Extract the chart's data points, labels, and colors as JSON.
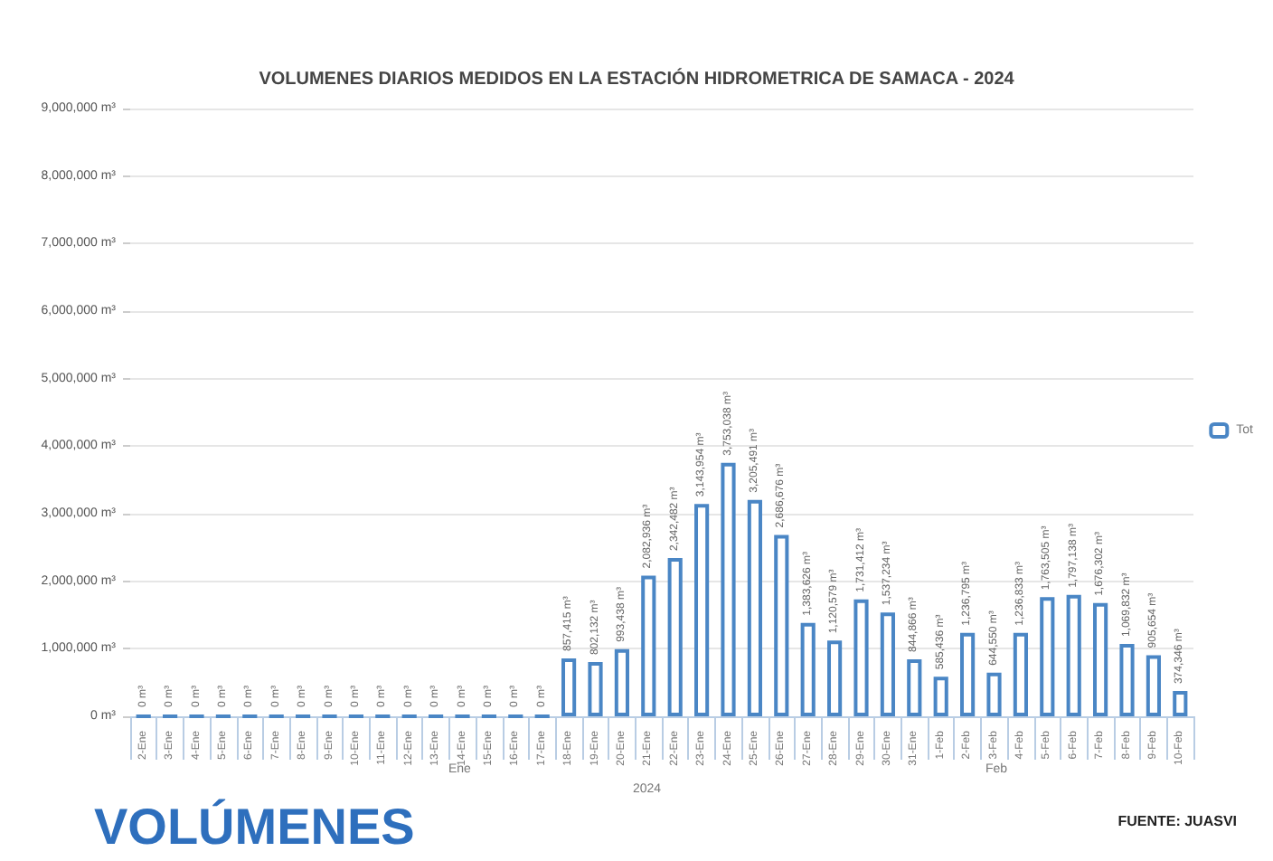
{
  "chart_data": {
    "type": "bar",
    "title": "VOLUMENES DIARIOS MEDIDOS EN LA ESTACIÓN HIDROMETRICA DE SAMACA - 2024",
    "categories": [
      "2-Ene",
      "3-Ene",
      "4-Ene",
      "5-Ene",
      "6-Ene",
      "7-Ene",
      "8-Ene",
      "9-Ene",
      "10-Ene",
      "11-Ene",
      "12-Ene",
      "13-Ene",
      "14-Ene",
      "15-Ene",
      "16-Ene",
      "17-Ene",
      "18-Ene",
      "19-Ene",
      "20-Ene",
      "21-Ene",
      "22-Ene",
      "23-Ene",
      "24-Ene",
      "25-Ene",
      "26-Ene",
      "27-Ene",
      "28-Ene",
      "29-Ene",
      "30-Ene",
      "31-Ene",
      "1-Feb",
      "2-Feb",
      "3-Feb",
      "4-Feb",
      "5-Feb",
      "6-Feb",
      "7-Feb",
      "8-Feb",
      "9-Feb",
      "10-Feb"
    ],
    "series": [
      {
        "name": "Tot",
        "color": "#4a86c5",
        "values": [
          0,
          0,
          0,
          0,
          0,
          0,
          0,
          0,
          0,
          0,
          0,
          0,
          0,
          0,
          0,
          0,
          857415,
          802132,
          993438,
          2082936,
          2342482,
          3143954,
          3753038,
          3205491,
          2686676,
          1383626,
          1120579,
          1731412,
          1537234,
          844866,
          585436,
          1236795,
          644550,
          1236833,
          1763505,
          1797138,
          1676302,
          1069832,
          905654,
          374346
        ],
        "value_labels": [
          "0 m³",
          "0 m³",
          "0 m³",
          "0 m³",
          "0 m³",
          "0 m³",
          "0 m³",
          "0 m³",
          "0 m³",
          "0 m³",
          "0 m³",
          "0 m³",
          "0 m³",
          "0 m³",
          "0 m³",
          "0 m³",
          "857,415 m³",
          "802,132 m³",
          "993,438 m³",
          "2,082,936 m³",
          "2,342,482 m³",
          "3,143,954 m³",
          "3,753,038 m³",
          "3,205,491 m³",
          "2,686,676 m³",
          "1,383,626 m³",
          "1,120,579 m³",
          "1,731,412 m³",
          "1,537,234 m³",
          "844,866 m³",
          "585,436 m³",
          "1,236,795 m³",
          "644,550 m³",
          "1,236,833 m³",
          "1,763,505 m³",
          "1,797,138 m³",
          "1,676,302 m³",
          "1,069,832 m³",
          "905,654 m³",
          "374,346 m³"
        ]
      }
    ],
    "ylim": [
      0,
      9000000
    ],
    "yticks": [
      {
        "value": 0,
        "label": "0 m³"
      },
      {
        "value": 1000000,
        "label": "1,000,000 m³"
      },
      {
        "value": 2000000,
        "label": "2,000,000 m³"
      },
      {
        "value": 3000000,
        "label": "3,000,000 m³"
      },
      {
        "value": 4000000,
        "label": "4,000,000 m³"
      },
      {
        "value": 5000000,
        "label": "5,000,000 m³"
      },
      {
        "value": 6000000,
        "label": "6,000,000 m³"
      },
      {
        "value": 7000000,
        "label": "7,000,000 m³"
      },
      {
        "value": 8000000,
        "label": "8,000,000 m³"
      },
      {
        "value": 9000000,
        "label": "9,000,000 m³"
      }
    ],
    "grid": "y",
    "legend": "right",
    "annotations": [
      "Ene",
      "Feb",
      "2024",
      "FUENTE: JUASVI",
      "VOLÚMENES"
    ]
  }
}
